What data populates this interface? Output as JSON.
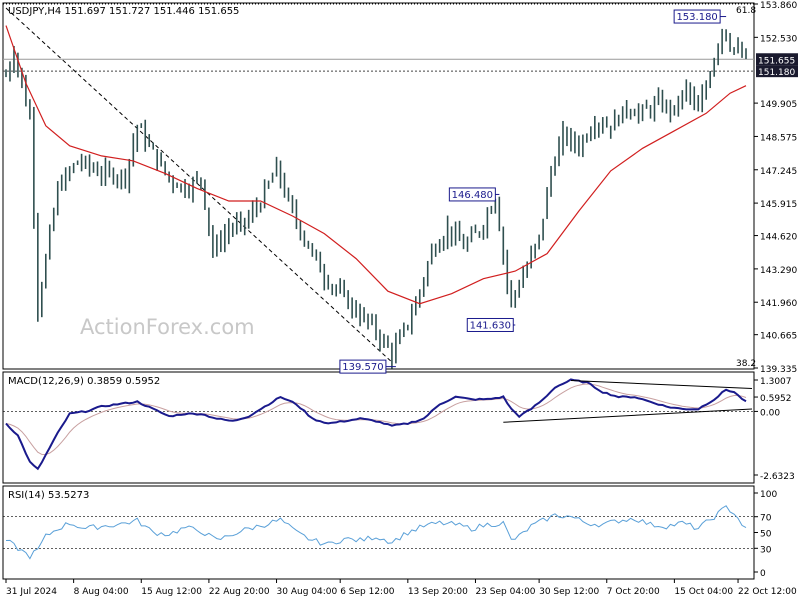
{
  "colors": {
    "background": "#ffffff",
    "frame": "#000000",
    "bar": "#2f4f4f",
    "ma": "#d11f1f",
    "macd_line": "#1a1a8c",
    "macd_signal": "#c8a0a0",
    "rsi_line": "#5aa0d8",
    "label_border": "#1a1a8c",
    "price_tag_bg": "#1a1a2e",
    "price_tag_text": "#ffffff",
    "watermark": "#cccccc",
    "grid_dotted": "#444444"
  },
  "watermark": "ActionForex.com",
  "chart_data": [
    {
      "type": "ohlc",
      "panel": "price",
      "title": "USDJPY,H4  151.697 151.727 151.446 151.655",
      "ylim": [
        139.335,
        153.86
      ],
      "y_ticks": [
        "153.860",
        "152.530",
        "151.655",
        "151.180",
        "149.905",
        "148.575",
        "147.245",
        "145.915",
        "144.620",
        "143.290",
        "141.960",
        "140.665",
        "139.335"
      ],
      "fib_labels": {
        "top": "61.8",
        "bottom": "38.2"
      },
      "current_price": "151.655",
      "support_level": "151.180",
      "annotations": [
        {
          "label": "153.180",
          "x_bar": 180,
          "price": 153.18
        },
        {
          "label": "146.480",
          "x_bar": 123,
          "price": 146.48
        },
        {
          "label": "141.630",
          "x_bar": 127,
          "price": 141.63
        },
        {
          "label": "139.570",
          "x_bar": 97,
          "price": 139.57
        }
      ],
      "trendline": {
        "from": {
          "x_bar": 0,
          "price": 153.7
        },
        "to": {
          "x_bar": 97,
          "price": 139.57
        }
      },
      "key_points": [
        [
          0,
          151.0
        ],
        [
          2,
          152.0
        ],
        [
          6,
          149.3
        ],
        [
          8,
          141.8
        ],
        [
          13,
          146.5
        ],
        [
          18,
          147.6
        ],
        [
          24,
          147.1
        ],
        [
          30,
          147.0
        ],
        [
          33,
          149.0
        ],
        [
          37,
          147.9
        ],
        [
          41,
          146.9
        ],
        [
          45,
          146.5
        ],
        [
          49,
          146.9
        ],
        [
          52,
          144.0
        ],
        [
          56,
          144.9
        ],
        [
          60,
          145.1
        ],
        [
          64,
          146.0
        ],
        [
          68,
          147.3
        ],
        [
          72,
          145.5
        ],
        [
          76,
          144.2
        ],
        [
          80,
          143.0
        ],
        [
          84,
          142.3
        ],
        [
          88,
          141.6
        ],
        [
          92,
          141.0
        ],
        [
          97,
          139.9
        ],
        [
          100,
          140.8
        ],
        [
          103,
          141.9
        ],
        [
          107,
          144.0
        ],
        [
          111,
          144.9
        ],
        [
          115,
          144.2
        ],
        [
          119,
          144.8
        ],
        [
          123,
          146.2
        ],
        [
          126,
          142.7
        ],
        [
          127,
          142.0
        ],
        [
          131,
          143.4
        ],
        [
          134,
          144.5
        ],
        [
          137,
          147.2
        ],
        [
          140,
          148.6
        ],
        [
          144,
          148.2
        ],
        [
          148,
          149.2
        ],
        [
          152,
          149.0
        ],
        [
          156,
          149.7
        ],
        [
          160,
          149.5
        ],
        [
          164,
          149.9
        ],
        [
          168,
          149.6
        ],
        [
          171,
          150.5
        ],
        [
          174,
          149.5
        ],
        [
          177,
          151.2
        ],
        [
          180,
          152.9
        ],
        [
          182,
          152.3
        ],
        [
          184,
          151.9
        ],
        [
          186,
          151.65
        ]
      ],
      "ma_points": [
        [
          0,
          153.0
        ],
        [
          5,
          150.7
        ],
        [
          10,
          149.0
        ],
        [
          16,
          148.2
        ],
        [
          24,
          147.8
        ],
        [
          32,
          147.6
        ],
        [
          40,
          147.1
        ],
        [
          48,
          146.5
        ],
        [
          56,
          146.0
        ],
        [
          64,
          146.0
        ],
        [
          72,
          145.4
        ],
        [
          80,
          144.7
        ],
        [
          88,
          143.7
        ],
        [
          96,
          142.4
        ],
        [
          104,
          141.9
        ],
        [
          112,
          142.3
        ],
        [
          120,
          142.9
        ],
        [
          128,
          143.2
        ],
        [
          136,
          143.9
        ],
        [
          144,
          145.6
        ],
        [
          152,
          147.2
        ],
        [
          160,
          148.1
        ],
        [
          168,
          148.8
        ],
        [
          176,
          149.5
        ],
        [
          182,
          150.3
        ],
        [
          186,
          150.6
        ]
      ]
    },
    {
      "type": "line",
      "panel": "macd",
      "title": "MACD(12,26,9) 0.3859 0.5952",
      "ylim": [
        -2.6323,
        1.3007
      ],
      "y_ticks": [
        "1.3007",
        "0.5952",
        "0.00",
        "-2.6323"
      ],
      "macd_points": [
        [
          0,
          -0.5
        ],
        [
          3,
          -1.0
        ],
        [
          6,
          -2.1
        ],
        [
          8,
          -2.4
        ],
        [
          10,
          -1.8
        ],
        [
          13,
          -0.9
        ],
        [
          16,
          -0.1
        ],
        [
          20,
          0.0
        ],
        [
          24,
          0.2
        ],
        [
          28,
          0.3
        ],
        [
          33,
          0.4
        ],
        [
          37,
          0.1
        ],
        [
          41,
          -0.2
        ],
        [
          45,
          -0.1
        ],
        [
          49,
          -0.1
        ],
        [
          53,
          -0.3
        ],
        [
          57,
          -0.4
        ],
        [
          61,
          -0.2
        ],
        [
          65,
          0.2
        ],
        [
          69,
          0.6
        ],
        [
          73,
          0.3
        ],
        [
          77,
          -0.3
        ],
        [
          81,
          -0.5
        ],
        [
          85,
          -0.4
        ],
        [
          89,
          -0.3
        ],
        [
          93,
          -0.4
        ],
        [
          97,
          -0.6
        ],
        [
          101,
          -0.5
        ],
        [
          105,
          -0.3
        ],
        [
          109,
          0.3
        ],
        [
          113,
          0.6
        ],
        [
          117,
          0.5
        ],
        [
          121,
          0.5
        ],
        [
          125,
          0.6
        ],
        [
          127,
          0.1
        ],
        [
          129,
          -0.2
        ],
        [
          132,
          0.1
        ],
        [
          135,
          0.5
        ],
        [
          138,
          1.0
        ],
        [
          142,
          1.3
        ],
        [
          146,
          1.2
        ],
        [
          150,
          0.8
        ],
        [
          154,
          0.6
        ],
        [
          158,
          0.6
        ],
        [
          162,
          0.4
        ],
        [
          166,
          0.2
        ],
        [
          170,
          0.1
        ],
        [
          174,
          0.1
        ],
        [
          178,
          0.5
        ],
        [
          181,
          0.9
        ],
        [
          183,
          0.8
        ],
        [
          186,
          0.39
        ]
      ],
      "trendlines": [
        {
          "from": {
            "x_bar": 142,
            "value": 1.28
          },
          "to": {
            "x_bar": 186,
            "value": 0.95
          }
        },
        {
          "from": {
            "x_bar": 125,
            "value": -0.45
          },
          "to": {
            "x_bar": 186,
            "value": 0.1
          }
        }
      ]
    },
    {
      "type": "line",
      "panel": "rsi",
      "title": "RSI(14) 53.5273",
      "ylim": [
        0,
        100
      ],
      "y_ticks": [
        "100",
        "70",
        "50",
        "30",
        "0"
      ],
      "rsi_points": [
        [
          0,
          40
        ],
        [
          3,
          30
        ],
        [
          6,
          20
        ],
        [
          8,
          28
        ],
        [
          10,
          45
        ],
        [
          13,
          55
        ],
        [
          16,
          62
        ],
        [
          20,
          55
        ],
        [
          24,
          58
        ],
        [
          28,
          60
        ],
        [
          33,
          65
        ],
        [
          37,
          50
        ],
        [
          41,
          48
        ],
        [
          45,
          56
        ],
        [
          49,
          52
        ],
        [
          53,
          40
        ],
        [
          57,
          48
        ],
        [
          61,
          55
        ],
        [
          65,
          60
        ],
        [
          69,
          66
        ],
        [
          73,
          50
        ],
        [
          77,
          40
        ],
        [
          81,
          35
        ],
        [
          85,
          42
        ],
        [
          89,
          40
        ],
        [
          93,
          45
        ],
        [
          97,
          38
        ],
        [
          101,
          50
        ],
        [
          105,
          58
        ],
        [
          109,
          62
        ],
        [
          113,
          60
        ],
        [
          117,
          55
        ],
        [
          121,
          60
        ],
        [
          125,
          62
        ],
        [
          127,
          40
        ],
        [
          129,
          45
        ],
        [
          132,
          58
        ],
        [
          135,
          65
        ],
        [
          138,
          72
        ],
        [
          142,
          70
        ],
        [
          146,
          62
        ],
        [
          150,
          60
        ],
        [
          154,
          65
        ],
        [
          158,
          68
        ],
        [
          162,
          60
        ],
        [
          166,
          58
        ],
        [
          170,
          62
        ],
        [
          174,
          55
        ],
        [
          178,
          70
        ],
        [
          181,
          82
        ],
        [
          183,
          75
        ],
        [
          186,
          53.5
        ]
      ]
    }
  ],
  "x_axis": {
    "labels": [
      {
        "text": "31 Jul 2024",
        "x_bar": 0
      },
      {
        "text": "8 Aug 04:00",
        "x_bar": 17
      },
      {
        "text": "15 Aug 12:00",
        "x_bar": 34
      },
      {
        "text": "22 Aug 20:00",
        "x_bar": 51
      },
      {
        "text": "30 Aug 04:00",
        "x_bar": 68
      },
      {
        "text": "6 Sep 12:00",
        "x_bar": 84
      },
      {
        "text": "13 Sep 20:00",
        "x_bar": 101
      },
      {
        "text": "23 Sep 04:00",
        "x_bar": 118
      },
      {
        "text": "30 Sep 12:00",
        "x_bar": 134
      },
      {
        "text": "7 Oct 20:00",
        "x_bar": 151
      },
      {
        "text": "15 Oct 04:00",
        "x_bar": 168
      },
      {
        "text": "22 Oct 12:00",
        "x_bar": 184
      }
    ]
  }
}
